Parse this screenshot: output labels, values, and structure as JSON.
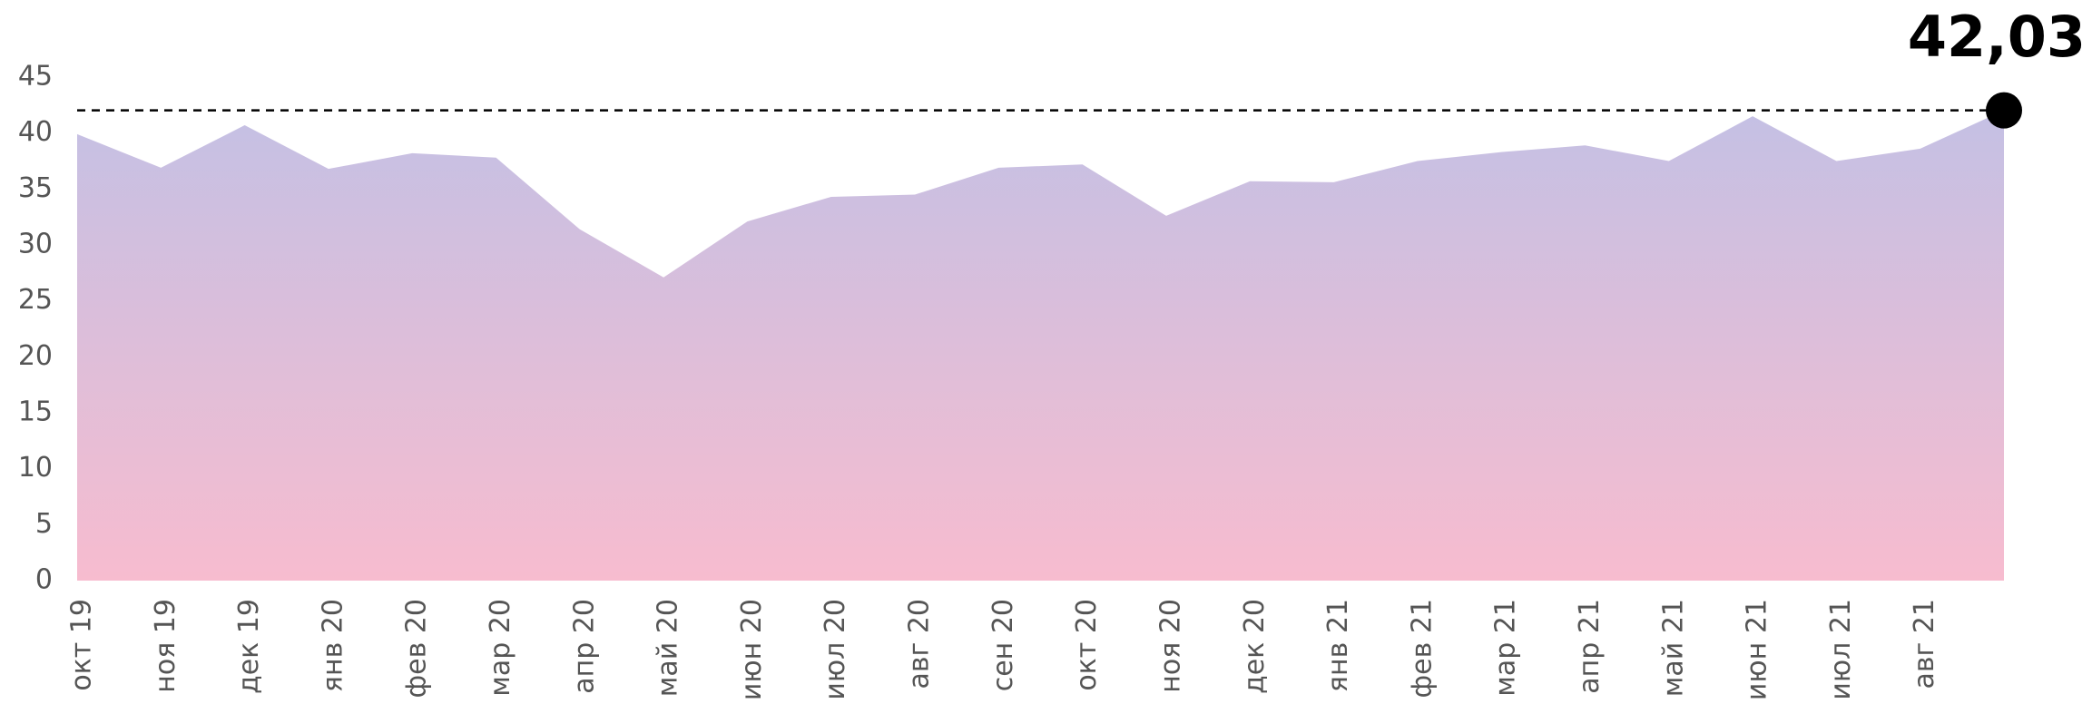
{
  "chart_data": {
    "type": "area",
    "categories": [
      "окт 19",
      "ноя 19",
      "дек 19",
      "янв 20",
      "фев 20",
      "мар 20",
      "апр 20",
      "май 20",
      "июн 20",
      "июл 20",
      "авг 20",
      "сен 20",
      "окт 20",
      "ноя 20",
      "дек 20",
      "янв 21",
      "фев 21",
      "мар 21",
      "апр 21",
      "май 21",
      "июн 21",
      "июл 21",
      "авг 21",
      null
    ],
    "values": [
      39.9,
      36.9,
      40.7,
      36.8,
      38.2,
      37.8,
      31.4,
      27.1,
      32.1,
      34.3,
      34.5,
      36.9,
      37.2,
      32.6,
      35.7,
      35.6,
      37.5,
      38.3,
      38.9,
      37.5,
      41.5,
      37.5,
      38.6,
      42.03
    ],
    "value_labels": [
      null,
      null,
      null,
      null,
      null,
      null,
      null,
      null,
      null,
      null,
      null,
      null,
      null,
      null,
      null,
      null,
      null,
      null,
      null,
      null,
      null,
      null,
      null,
      "42,03"
    ],
    "gradient": [
      "#c4c0e4",
      "#f7bccf"
    ],
    "ylim": [
      0,
      45
    ],
    "yticks": [
      0,
      5,
      10,
      15,
      20,
      25,
      30,
      35,
      40,
      45
    ]
  }
}
